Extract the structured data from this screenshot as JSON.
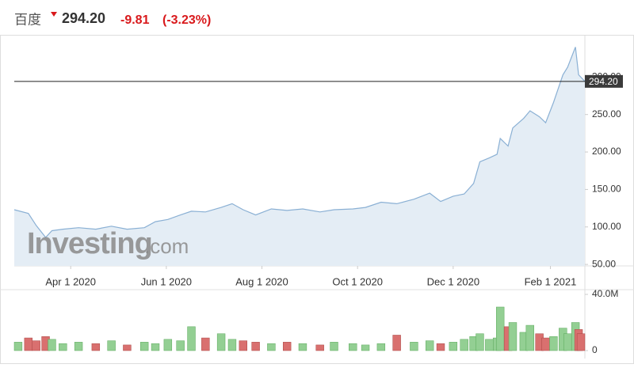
{
  "header": {
    "name": "百度",
    "price": "294.20",
    "change": "-9.81",
    "change_percent": "(-3.23%)"
  },
  "watermark": {
    "brand": "Investing",
    "suffix": ".com"
  },
  "chart_data": [
    {
      "type": "area",
      "x": [
        "2020-02-25",
        "2020-03-05",
        "2020-03-10",
        "2020-03-16",
        "2020-03-20",
        "2020-03-27",
        "2020-04-06",
        "2020-04-17",
        "2020-04-27",
        "2020-05-07",
        "2020-05-18",
        "2020-05-25",
        "2020-06-02",
        "2020-06-10",
        "2020-06-17",
        "2020-06-26",
        "2020-07-06",
        "2020-07-13",
        "2020-07-20",
        "2020-07-28",
        "2020-08-07",
        "2020-08-17",
        "2020-08-27",
        "2020-09-07",
        "2020-09-16",
        "2020-09-28",
        "2020-10-06",
        "2020-10-16",
        "2020-10-26",
        "2020-11-06",
        "2020-11-16",
        "2020-11-23",
        "2020-12-01",
        "2020-12-08",
        "2020-12-14",
        "2020-12-18",
        "2020-12-24",
        "2020-12-29",
        "2020-12-31",
        "2021-01-05",
        "2021-01-08",
        "2021-01-15",
        "2021-01-19",
        "2021-01-25",
        "2021-01-29",
        "2021-02-03",
        "2021-02-09",
        "2021-02-12",
        "2021-02-17",
        "2021-02-19",
        "2021-02-23"
      ],
      "values": [
        123,
        118,
        102,
        86,
        95,
        97,
        99,
        97,
        101,
        97,
        99,
        107,
        110,
        116,
        121,
        120,
        126,
        131,
        123,
        116,
        124,
        122,
        124,
        120,
        123,
        124,
        126,
        133,
        131,
        137,
        145,
        134,
        141,
        144,
        158,
        187,
        192,
        197,
        218,
        208,
        232,
        245,
        255,
        247,
        239,
        266,
        303,
        313,
        340,
        303,
        294.2
      ],
      "color": "#8ab0d4",
      "fill": "#e4edf5",
      "xlim": [
        "2020-02-25",
        "2021-02-23"
      ],
      "xticks": [
        {
          "value": "2020-04-01",
          "label": "Apr 1 2020"
        },
        {
          "value": "2020-06-01",
          "label": "Jun 1 2020"
        },
        {
          "value": "2020-08-01",
          "label": "Aug 1 2020"
        },
        {
          "value": "2020-10-01",
          "label": "Oct 1 2020"
        },
        {
          "value": "2020-12-01",
          "label": "Dec 1 2020"
        },
        {
          "value": "2021-02-01",
          "label": "Feb 1 2021"
        }
      ],
      "ylim": [
        48,
        350
      ],
      "yticks": [
        {
          "value": 50,
          "label": "50.00"
        },
        {
          "value": 100,
          "label": "100.00"
        },
        {
          "value": 150,
          "label": "150.00"
        },
        {
          "value": 200,
          "label": "200.00"
        },
        {
          "value": 250,
          "label": "250.00"
        },
        {
          "value": 300,
          "label": "300.00"
        }
      ],
      "reference_line": {
        "value": 294.2,
        "label": "294.20"
      }
    },
    {
      "type": "bar",
      "values": [
        6000000,
        9000000,
        7000000,
        10000000,
        8000000,
        5000000,
        6000000,
        5000000,
        7000000,
        4000000,
        6000000,
        5000000,
        8000000,
        7000000,
        17000000,
        9000000,
        12000000,
        8000000,
        7000000,
        6000000,
        5000000,
        6000000,
        5000000,
        4000000,
        6000000,
        5000000,
        4000000,
        5000000,
        11000000,
        6000000,
        7000000,
        5000000,
        6000000,
        8000000,
        10000000,
        12000000,
        8000000,
        9000000,
        31000000,
        17000000,
        20000000,
        13000000,
        18000000,
        12000000,
        9000000,
        10000000,
        16000000,
        12000000,
        20000000,
        15000000,
        12000000
      ],
      "up_color": "#93cf93",
      "down_color": "#d9706f",
      "ylim": [
        0,
        40000000
      ],
      "yticks": [
        0,
        {
          "value": 40000000,
          "label": "40.0M"
        }
      ]
    }
  ]
}
